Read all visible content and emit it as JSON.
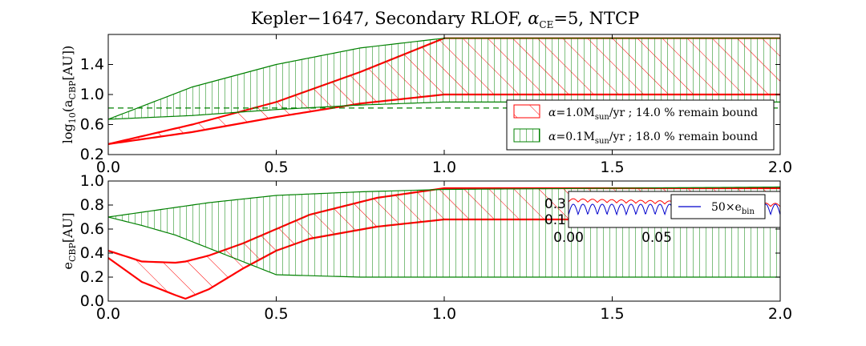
{
  "chart_data": [
    {
      "type": "area",
      "title": "Kepler−1647, Secondary RLOF, αCE =5, NTCP",
      "title_parts": {
        "pre": "Kepler−1647, Secondary RLOF, ",
        "alpha": "α",
        "sub": "CE",
        "post": "=5, NTCP"
      },
      "xlabel": "",
      "ylabel": "log10(aCBP[AU])",
      "ylabel_parts": {
        "pre": "log",
        "sub1": "10",
        "mid": "(a",
        "sub2": "CBP",
        "post": "[AU])"
      },
      "xlim": [
        0.0,
        2.0
      ],
      "ylim": [
        0.2,
        1.8
      ],
      "xticks": [
        "0.0",
        "0.5",
        "1.0",
        "1.5",
        "2.0"
      ],
      "yticks": [
        "0.2",
        "0.6",
        "1.0",
        "1.4"
      ],
      "hline": 0.82,
      "legend_position": "lower-right",
      "series": [
        {
          "name": "α=1.0Msun/yr ; 14.0 % remain bound",
          "legend": {
            "alpha": "α",
            "val": "=1.0M",
            "sub": "sun",
            "rest": "/yr ; 14.0 % remain bound"
          },
          "color": "#ff0000",
          "hatch": "diagonal",
          "x": [
            0.0,
            0.25,
            0.5,
            0.75,
            1.0,
            1.25,
            1.5,
            1.75,
            2.0
          ],
          "lower": [
            0.34,
            0.5,
            0.7,
            0.88,
            1.0,
            1.0,
            1.0,
            1.0,
            1.0
          ],
          "upper": [
            0.34,
            0.6,
            0.9,
            1.3,
            1.75,
            1.75,
            1.75,
            1.75,
            1.75
          ]
        },
        {
          "name": "α=0.1Msun/yr ; 18.0 % remain bound",
          "legend": {
            "alpha": "α",
            "val": "=0.1M",
            "sub": "sun",
            "rest": "/yr ; 18.0 % remain bound"
          },
          "color": "#008000",
          "hatch": "vertical",
          "x": [
            0.0,
            0.25,
            0.5,
            0.75,
            1.0,
            1.25,
            1.5,
            1.75,
            2.0
          ],
          "lower": [
            0.67,
            0.72,
            0.8,
            0.86,
            0.9,
            0.9,
            0.9,
            0.9,
            0.9
          ],
          "upper": [
            0.67,
            1.1,
            1.4,
            1.62,
            1.75,
            1.75,
            1.75,
            1.75,
            1.75
          ]
        }
      ]
    },
    {
      "type": "area",
      "title": "",
      "xlabel": "",
      "ylabel": "eCBP[AU]",
      "ylabel_parts": {
        "pre": "e",
        "sub": "CBP",
        "post": "[AU]"
      },
      "xlim": [
        0.0,
        2.0
      ],
      "ylim": [
        0.0,
        1.0
      ],
      "xticks": [
        "0.0",
        "0.5",
        "1.0",
        "1.5",
        "2.0"
      ],
      "yticks": [
        "0.0",
        "0.2",
        "0.4",
        "0.6",
        "0.8",
        "1.0"
      ],
      "series": [
        {
          "name": "α=1.0Msun/yr",
          "color": "#ff0000",
          "hatch": "diagonal",
          "x": [
            0.0,
            0.1,
            0.2,
            0.23,
            0.3,
            0.4,
            0.5,
            0.6,
            0.8,
            1.0,
            1.5,
            2.0
          ],
          "lower": [
            0.36,
            0.16,
            0.05,
            0.02,
            0.1,
            0.27,
            0.42,
            0.52,
            0.62,
            0.68,
            0.68,
            0.68
          ],
          "upper": [
            0.42,
            0.33,
            0.32,
            0.33,
            0.38,
            0.48,
            0.6,
            0.72,
            0.86,
            0.94,
            0.94,
            0.94
          ]
        },
        {
          "name": "α=0.1Msun/yr",
          "color": "#008000",
          "hatch": "vertical",
          "x": [
            0.0,
            0.1,
            0.2,
            0.3,
            0.4,
            0.5,
            0.75,
            1.0,
            1.5,
            2.0
          ],
          "lower": [
            0.7,
            0.63,
            0.55,
            0.44,
            0.33,
            0.22,
            0.2,
            0.2,
            0.2,
            0.2
          ],
          "upper": [
            0.7,
            0.74,
            0.78,
            0.82,
            0.85,
            0.88,
            0.91,
            0.93,
            0.94,
            0.95
          ]
        }
      ]
    },
    {
      "type": "line",
      "title": "",
      "xlim": [
        0.0,
        0.12
      ],
      "ylim": [
        0.0,
        0.45
      ],
      "xticks": [
        "0.00",
        "0.05"
      ],
      "yticks": [
        "0.3",
        "0.1"
      ],
      "legend_position": "upper-right",
      "series": [
        {
          "name": "",
          "color": "#ff0000",
          "baseline": 0.32,
          "amplitude": 0.04,
          "cycles": 22,
          "trend": 0.06
        },
        {
          "name": "50×ebin",
          "legend": {
            "pre": "50×e",
            "sub": "bin"
          },
          "color": "#0000cc",
          "baseline": 0.16,
          "amplitude": 0.13,
          "cycles": 22,
          "trend": 0.0
        }
      ]
    }
  ]
}
